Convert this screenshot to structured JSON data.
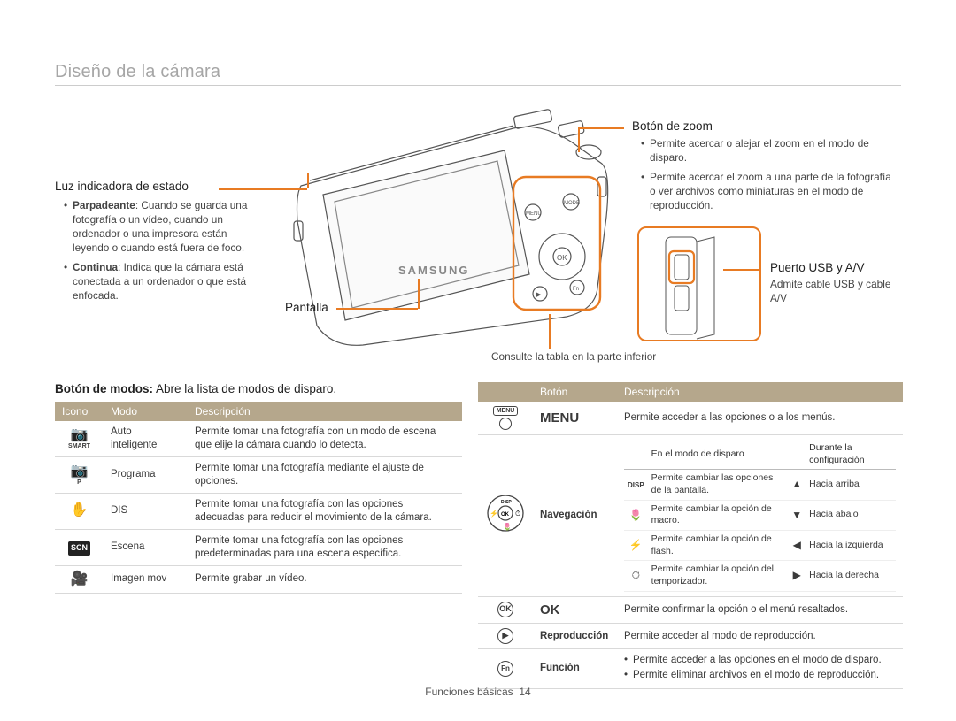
{
  "colors": {
    "accent": "#e87b23",
    "header_bg": "#b5a78c",
    "text": "#3a3a3a",
    "title_grey": "#a6a6a6",
    "rule": "#cccccc"
  },
  "title": "Diseño de la cámara",
  "labels": {
    "status_led": {
      "title": "Luz indicadora de estado",
      "items": [
        {
          "lead": "Parpadeante",
          "text": ": Cuando se guarda una fotografía o un vídeo, cuando un ordenador o una impresora están leyendo o cuando está fuera de foco."
        },
        {
          "lead": "Continua",
          "text": ": Indica que la cámara está conectada a un ordenador o que está enfocada."
        }
      ]
    },
    "pantalla": "Pantalla",
    "zoom": {
      "title": "Botón de zoom",
      "items": [
        "Permite acercar o alejar el zoom en el modo de disparo.",
        "Permite acercar el zoom a una parte de la fotografía o ver archivos como miniaturas en el modo de reproducción."
      ]
    },
    "usb": {
      "title": "Puerto USB y A/V",
      "text": "Admite cable USB y cable A/V"
    },
    "consulte": "Consulte la tabla en la parte inferior"
  },
  "modes_lead": {
    "bold": "Botón de modos:",
    "rest": " Abre la lista de modos de disparo."
  },
  "modes_table": {
    "headers": [
      "Icono",
      "Modo",
      "Descripción"
    ],
    "rows": [
      {
        "icon": "📷",
        "icon_sub": "SMART",
        "mode": "Auto inteligente",
        "desc": "Permite tomar una fotografía con un modo de escena que elije la cámara cuando lo detecta."
      },
      {
        "icon": "📷",
        "icon_sub": "P",
        "mode": "Programa",
        "desc": "Permite tomar una fotografía mediante el ajuste de opciones."
      },
      {
        "icon": "✋",
        "mode": "DIS",
        "desc": "Permite tomar una fotografía con las opciones adecuadas para reducir el movimiento de la cámara."
      },
      {
        "icon": "SCN",
        "mode": "Escena",
        "desc": "Permite tomar una fotografía con las opciones predeterminadas para una escena específica."
      },
      {
        "icon": "🎥",
        "mode": "Imagen mov",
        "desc": "Permite grabar un vídeo."
      }
    ]
  },
  "buttons_table": {
    "headers": [
      "Botón",
      "Descripción"
    ],
    "rows": [
      {
        "btn_icon": "MENU_BOX",
        "btn_label": "MENU",
        "desc_plain": "Permite acceder a las opciones o a los menús."
      },
      {
        "btn_icon": "NAV",
        "btn_label": "Navegación",
        "nav_headers": [
          "",
          "En el modo de disparo",
          "",
          "Durante la configuración"
        ],
        "nav_rows": [
          {
            "ic1": "DISP",
            "c1": "Permite cambiar las opciones de la pantalla.",
            "ic2": "▲",
            "c2": "Hacia arriba"
          },
          {
            "ic1": "🌷",
            "c1": "Permite cambiar la opción de macro.",
            "ic2": "▼",
            "c2": "Hacia abajo"
          },
          {
            "ic1": "⚡",
            "c1": "Permite cambiar la opción de flash.",
            "ic2": "◀",
            "c2": "Hacia la izquierda"
          },
          {
            "ic1": "⏱",
            "c1": "Permite cambiar la opción del temporizador.",
            "ic2": "▶",
            "c2": "Hacia la derecha"
          }
        ]
      },
      {
        "btn_icon": "OK_CIRCLE",
        "btn_label": "OK",
        "desc_plain": "Permite confirmar la opción o el menú resaltados."
      },
      {
        "btn_icon": "PLAY_CIRCLE",
        "btn_label": "Reproducción",
        "desc_plain": "Permite acceder al modo de reproducción."
      },
      {
        "btn_icon": "FN_CIRCLE",
        "btn_label": "Función",
        "desc_bullets": [
          "Permite acceder a las opciones en el modo de disparo.",
          "Permite eliminar archivos en el modo de reproducción."
        ]
      }
    ]
  },
  "footer": {
    "label": "Funciones básicas",
    "page": "14"
  }
}
